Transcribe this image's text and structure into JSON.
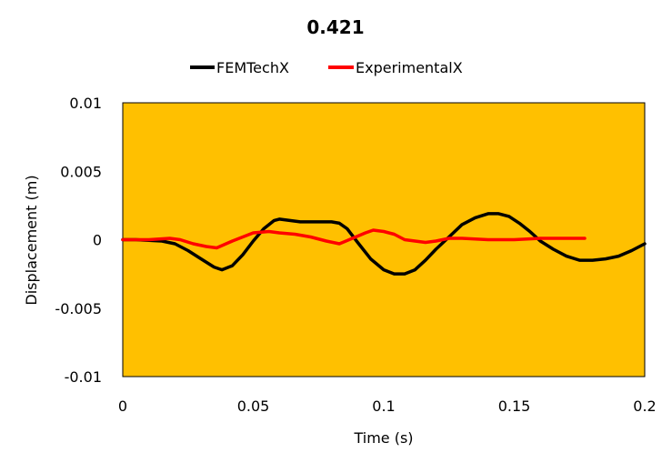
{
  "chart_data": {
    "type": "line",
    "title": "0.421",
    "xlabel": "Time (s)",
    "ylabel": "Displacement (m)",
    "xlim": [
      0,
      0.2
    ],
    "ylim": [
      -0.01,
      0.01
    ],
    "x_ticks": [
      "0",
      "0.05",
      "0.1",
      "0.15",
      "0.2"
    ],
    "y_ticks": [
      "0.01",
      "0.005",
      "0",
      "-0.005",
      "-0.01"
    ],
    "x_tick_values": [
      0,
      0.05,
      0.1,
      0.15,
      0.2
    ],
    "y_tick_values": [
      0.01,
      0.005,
      0,
      -0.005,
      -0.01
    ],
    "grid": false,
    "legend_position": "top",
    "plot_background": "#FFC000",
    "series": [
      {
        "name": "FEMTechX",
        "color": "#000000",
        "x": [
          0,
          0.005,
          0.01,
          0.015,
          0.02,
          0.025,
          0.03,
          0.035,
          0.038,
          0.042,
          0.046,
          0.05,
          0.054,
          0.058,
          0.06,
          0.064,
          0.068,
          0.072,
          0.076,
          0.08,
          0.083,
          0.086,
          0.09,
          0.095,
          0.1,
          0.104,
          0.108,
          0.112,
          0.116,
          0.12,
          0.125,
          0.13,
          0.135,
          0.14,
          0.144,
          0.148,
          0.152,
          0.156,
          0.16,
          0.165,
          0.17,
          0.175,
          0.18,
          0.185,
          0.19,
          0.195,
          0.2
        ],
        "y": [
          0,
          0,
          -5e-05,
          -0.0001,
          -0.0003,
          -0.0008,
          -0.0014,
          -0.002,
          -0.0022,
          -0.0019,
          -0.0011,
          -0.0001,
          0.0008,
          0.0014,
          0.0015,
          0.0014,
          0.0013,
          0.0013,
          0.0013,
          0.0013,
          0.0012,
          0.0008,
          -0.0002,
          -0.0014,
          -0.0022,
          -0.0025,
          -0.0025,
          -0.0022,
          -0.0015,
          -0.0007,
          0.0002,
          0.0011,
          0.0016,
          0.0019,
          0.0019,
          0.0017,
          0.0012,
          0.0006,
          -0.0001,
          -0.0007,
          -0.0012,
          -0.0015,
          -0.0015,
          -0.0014,
          -0.0012,
          -0.0008,
          -0.0003
        ]
      },
      {
        "name": "ExperimentalX",
        "color": "#FF0000",
        "x": [
          0,
          0.01,
          0.018,
          0.022,
          0.027,
          0.032,
          0.036,
          0.042,
          0.05,
          0.056,
          0.06,
          0.066,
          0.072,
          0.078,
          0.083,
          0.088,
          0.093,
          0.096,
          0.1,
          0.104,
          0.108,
          0.112,
          0.116,
          0.12,
          0.125,
          0.13,
          0.14,
          0.15,
          0.16,
          0.17,
          0.177
        ],
        "y": [
          0,
          0,
          0.0001,
          0,
          -0.0003,
          -0.0005,
          -0.0006,
          -0.0001,
          0.0005,
          0.0006,
          0.0005,
          0.0004,
          0.0002,
          -0.0001,
          -0.0003,
          0.0001,
          0.0005,
          0.0007,
          0.0006,
          0.0004,
          0,
          -0.0001,
          -0.0002,
          -0.0001,
          0.0001,
          0.0001,
          0,
          0,
          0.0001,
          0.0001,
          0.0001
        ]
      }
    ]
  }
}
